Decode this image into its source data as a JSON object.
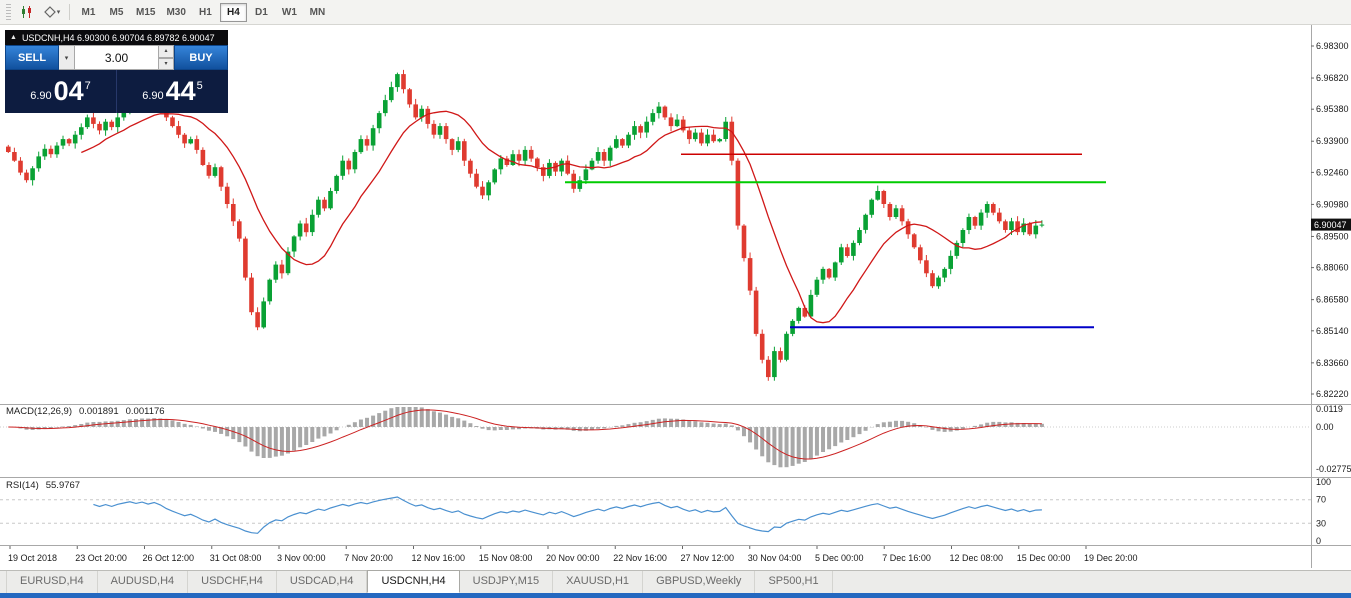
{
  "icons": {
    "chevron_down": "▾",
    "chevron_up": "▴"
  },
  "toolbar": {
    "timeframes": [
      "M1",
      "M5",
      "M15",
      "M30",
      "H1",
      "H4",
      "D1",
      "W1",
      "MN"
    ],
    "active_timeframe": "H4"
  },
  "chart_header": {
    "arrow": "▲",
    "text": "USDCNH,H4 6.90300 6.90704 6.89782 6.90047"
  },
  "trade_panel": {
    "sell_label": "SELL",
    "buy_label": "BUY",
    "volume": "3.00",
    "bid": {
      "prefix": "6.90",
      "big": "04",
      "sup": "7"
    },
    "ask": {
      "prefix": "6.90",
      "big": "44",
      "sup": "5"
    }
  },
  "tabs": {
    "items": [
      "EURUSD,H4",
      "AUDUSD,H4",
      "USDCHF,H4",
      "USDCAD,H4",
      "USDCNH,H4",
      "USDJPY,M15",
      "XAUUSD,H1",
      "GBPUSD,Weekly",
      "SP500,H1"
    ],
    "active": "USDCNH,H4"
  },
  "chart_data": {
    "type": "candlestick",
    "symbol": "USDCNH",
    "timeframe": "H4",
    "ohlc": {
      "open": "6.90300",
      "high": "6.90704",
      "low": "6.89782",
      "close": "6.90047"
    },
    "current_price": "6.90047",
    "price_range": [
      6.8222,
      6.983
    ],
    "y_ticks": [
      "6.98300",
      "6.96820",
      "6.95380",
      "6.93900",
      "6.92460",
      "6.90980",
      "6.89500",
      "6.88060",
      "6.86580",
      "6.85140",
      "6.83660",
      "6.82220"
    ],
    "x_ticks": [
      "19 Oct 2018",
      "23 Oct 20:00",
      "26 Oct 12:00",
      "31 Oct 08:00",
      "3 Nov 00:00",
      "7 Nov 20:00",
      "12 Nov 16:00",
      "15 Nov 08:00",
      "20 Nov 00:00",
      "22 Nov 16:00",
      "27 Nov 12:00",
      "30 Nov 04:00",
      "5 Dec 00:00",
      "7 Dec 16:00",
      "12 Dec 08:00",
      "15 Dec 00:00",
      "19 Dec 20:00"
    ],
    "closes": [
      6.934,
      6.93,
      6.9245,
      6.921,
      6.9265,
      6.932,
      6.9355,
      6.933,
      6.937,
      6.94,
      6.938,
      6.942,
      6.9455,
      6.95,
      6.947,
      6.944,
      6.948,
      6.9455,
      6.95,
      6.953,
      6.956,
      6.954,
      6.957,
      6.9545,
      6.958,
      6.955,
      6.95,
      6.946,
      6.942,
      6.938,
      6.94,
      6.935,
      6.928,
      6.923,
      6.927,
      6.918,
      6.91,
      6.902,
      6.894,
      6.876,
      6.86,
      6.853,
      6.865,
      6.875,
      6.882,
      6.878,
      6.888,
      6.895,
      6.901,
      6.897,
      6.905,
      6.912,
      6.908,
      6.916,
      6.923,
      6.93,
      6.926,
      6.934,
      6.94,
      6.937,
      6.945,
      6.952,
      6.958,
      6.964,
      6.97,
      6.963,
      6.956,
      6.95,
      6.954,
      6.947,
      6.942,
      6.946,
      6.94,
      6.935,
      6.939,
      6.93,
      6.924,
      6.918,
      6.914,
      6.92,
      6.926,
      6.931,
      6.928,
      6.933,
      6.93,
      6.935,
      6.931,
      6.927,
      6.923,
      6.929,
      6.925,
      6.93,
      6.924,
      6.917,
      6.921,
      6.926,
      6.93,
      6.934,
      6.93,
      6.936,
      6.94,
      6.937,
      6.942,
      6.946,
      6.943,
      6.948,
      6.952,
      6.955,
      6.95,
      6.946,
      6.949,
      6.944,
      6.94,
      6.943,
      6.938,
      6.942,
      6.939,
      6.94,
      6.948,
      6.93,
      6.9,
      6.885,
      6.87,
      6.85,
      6.838,
      6.83,
      6.842,
      6.838,
      6.85,
      6.856,
      6.862,
      6.858,
      6.868,
      6.875,
      6.88,
      6.876,
      6.883,
      6.89,
      6.886,
      6.892,
      6.898,
      6.905,
      6.912,
      6.916,
      6.91,
      6.904,
      6.908,
      6.902,
      6.896,
      6.89,
      6.884,
      6.878,
      6.872,
      6.876,
      6.88,
      6.886,
      6.892,
      6.898,
      6.904,
      6.9,
      6.906,
      6.91,
      6.906,
      6.902,
      6.898,
      6.902,
      6.897,
      6.901,
      6.896,
      6.9,
      6.90047
    ],
    "candle_colors": {
      "up": "#09a134",
      "down": "#df3b30"
    },
    "moving_average": {
      "type": "sma",
      "period": 13,
      "color": "#d01818"
    },
    "hlines": [
      {
        "price": 6.933,
        "color": "#cc0000",
        "width": 1.5,
        "from_candle": 111,
        "to_candle": 177
      },
      {
        "price": 6.92,
        "color": "#00cc00",
        "width": 2,
        "from_candle": 92,
        "to_candle": 181
      },
      {
        "price": 6.853,
        "color": "#0000c8",
        "width": 2,
        "from_candle": 129,
        "to_candle": 179
      }
    ],
    "indicators": [
      {
        "name": "MACD",
        "params": [
          12,
          26,
          9
        ],
        "label": "MACD(12,26,9)",
        "values": [
          "0.001891",
          "0.001176"
        ],
        "scale": [
          "0.0119",
          "0.00",
          "-0.02775"
        ],
        "histogram_color": "#a8a8a8",
        "signal_color": "#cc2222"
      },
      {
        "name": "RSI",
        "params": [
          14
        ],
        "label": "RSI(14)",
        "values": [
          "55.9767"
        ],
        "scale": [
          "100",
          "70",
          "30",
          "0"
        ],
        "levels": [
          70,
          30
        ],
        "line_color": "#4a90d0"
      }
    ]
  }
}
